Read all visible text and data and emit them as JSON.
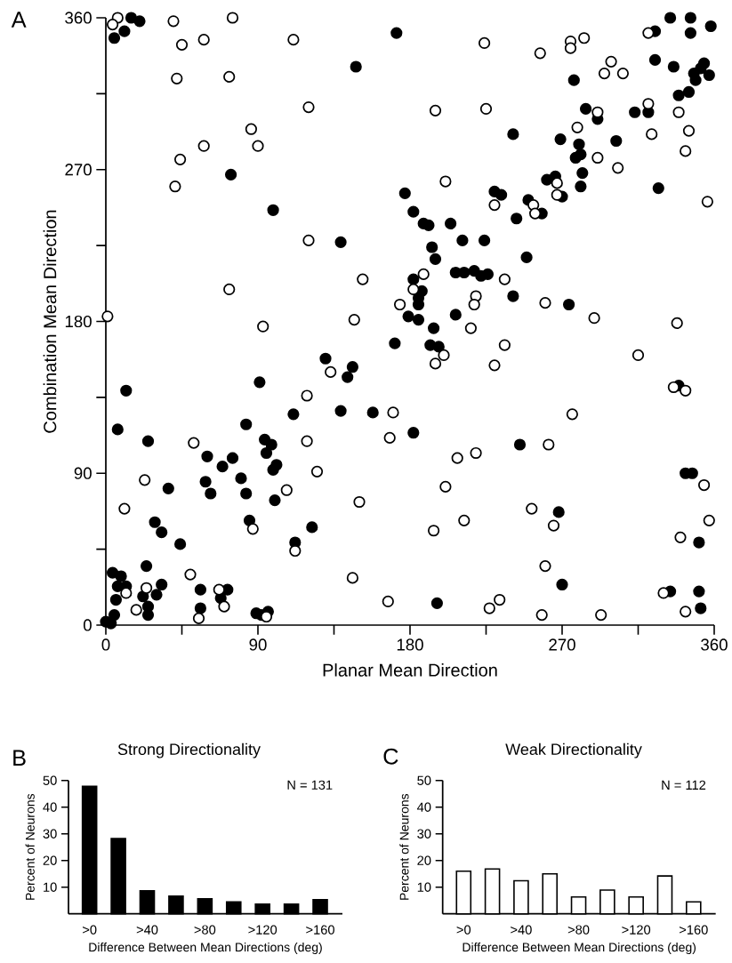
{
  "chart_data": [
    {
      "type": "scatter",
      "xlabel": "Planar Mean Direction",
      "ylabel": "Combination Mean Direction",
      "annotations": [
        "A"
      ],
      "marker": "circle",
      "xlim": [
        0,
        360
      ],
      "ylim": [
        0,
        360
      ],
      "xticks": [
        0,
        {
          "value": 45,
          "label": null
        },
        90,
        {
          "value": 135,
          "label": null
        },
        180,
        {
          "value": 225,
          "label": null
        },
        270,
        {
          "value": 315,
          "label": null
        },
        360
      ],
      "yticks": [
        0,
        {
          "value": 45,
          "label": null
        },
        90,
        {
          "value": 135,
          "label": null
        },
        180,
        {
          "value": 225,
          "label": null
        },
        270,
        {
          "value": 315,
          "label": null
        },
        360
      ],
      "series": [
        {
          "color": "#000000",
          "x": [
            15,
            20,
            11,
            5,
            172,
            148,
            74,
            99,
            139,
            334,
            346,
            358,
            325,
            346,
            277,
            325,
            336,
            354,
            352,
            357,
            348,
            349,
            345,
            339,
            284,
            291,
            313,
            321,
            241,
            269,
            280,
            302,
            278,
            281,
            282,
            281,
            327,
            177,
            182,
            188,
            191,
            204,
            211,
            224,
            193,
            195,
            249,
            230,
            234,
            261,
            266,
            270,
            250,
            258,
            243,
            207,
            212,
            218,
            222,
            226,
            182,
            187,
            185,
            185,
            179,
            185,
            241,
            207,
            274,
            171,
            130,
            146,
            143,
            91,
            12,
            139,
            158,
            111,
            83,
            7,
            25,
            94,
            98,
            95,
            60,
            75,
            69,
            101,
            99,
            80,
            59,
            62,
            83,
            100,
            37,
            29,
            33,
            44,
            85,
            122,
            112,
            24,
            4,
            9,
            12,
            7,
            6,
            33,
            30,
            22,
            25,
            25,
            5,
            0,
            3,
            56,
            56,
            72,
            68,
            89,
            92,
            96,
            194,
            192,
            197,
            182,
            245,
            339,
            343,
            347,
            268,
            351,
            270,
            196,
            334,
            351,
            352
          ],
          "values": [
            360,
            358,
            352,
            348,
            351,
            331,
            267,
            246,
            227,
            360,
            360,
            355,
            352,
            351,
            323,
            335,
            331,
            333,
            330,
            326,
            327,
            323,
            316,
            314,
            306,
            300,
            304,
            304,
            291,
            288,
            285,
            287,
            277,
            279,
            268,
            260,
            259,
            256,
            245,
            238,
            237,
            238,
            228,
            228,
            224,
            217,
            218,
            257,
            255,
            264,
            266,
            254,
            252,
            244,
            241,
            209,
            209,
            210,
            207,
            208,
            205,
            198,
            194,
            190,
            183,
            181,
            195,
            184,
            190,
            167,
            158,
            153,
            147,
            144,
            139,
            127,
            126,
            125,
            119,
            116,
            109,
            110,
            107,
            102,
            100,
            99,
            94,
            95,
            92,
            87,
            85,
            78,
            78,
            74,
            81,
            61,
            55,
            48,
            62,
            58,
            49,
            35,
            31,
            29,
            23,
            23,
            15,
            24,
            18,
            17,
            11,
            6,
            6,
            2,
            1,
            21,
            10,
            21,
            16,
            7,
            6,
            8,
            176,
            166,
            165,
            114,
            107,
            142,
            90,
            90,
            67,
            49,
            24,
            13,
            20,
            20,
            10
          ]
        },
        {
          "color": "#ffffff",
          "x": [
            7,
            4,
            40,
            75,
            45,
            58,
            111,
            42,
            73,
            120,
            86,
            58,
            90,
            44,
            41,
            120,
            152,
            73,
            174,
            1,
            147,
            224,
            257,
            275,
            275,
            283,
            321,
            299,
            295,
            306,
            195,
            225,
            321,
            339,
            345,
            323,
            343,
            279,
            291,
            291,
            303,
            201,
            356,
            230,
            267,
            267,
            253,
            254,
            188,
            182,
            236,
            219,
            218,
            260,
            289,
            93,
            52,
            23,
            11,
            87,
            112,
            119,
            119,
            133,
            125,
            107,
            150,
            170,
            168,
            146,
            167,
            50,
            24,
            12,
            18,
            67,
            70,
            55,
            95,
            216,
            338,
            200,
            195,
            236,
            230,
            315,
            336,
            343,
            276,
            262,
            208,
            219,
            201,
            354,
            252,
            265,
            212,
            194,
            357,
            340,
            260,
            330,
            233,
            227,
            258,
            293,
            343
          ],
          "values": [
            360,
            356,
            358,
            360,
            344,
            347,
            347,
            324,
            325,
            307,
            294,
            284,
            284,
            276,
            260,
            228,
            205,
            199,
            190,
            183,
            181,
            345,
            339,
            346,
            342,
            348,
            351,
            334,
            327,
            327,
            305,
            306,
            309,
            304,
            293,
            291,
            281,
            295,
            304,
            277,
            271,
            263,
            251,
            249,
            262,
            255,
            249,
            244,
            208,
            199,
            205,
            195,
            190,
            191,
            182,
            177,
            108,
            86,
            69,
            57,
            44,
            136,
            109,
            150,
            91,
            80,
            73,
            126,
            111,
            28,
            14,
            30,
            22,
            19,
            9,
            21,
            11,
            4,
            5,
            176,
            179,
            160,
            155,
            166,
            154,
            160,
            141,
            139,
            125,
            107,
            99,
            102,
            82,
            83,
            69,
            59,
            62,
            56,
            62,
            52,
            35,
            19,
            15,
            10,
            6,
            6,
            8
          ]
        }
      ]
    },
    {
      "type": "bar",
      "title": "Strong Directionality",
      "xlabel": "Difference Between Mean Directions (deg)",
      "ylabel": "Percent of Neurons",
      "annotations": [
        "B",
        "N = 131"
      ],
      "categories": [
        ">0",
        null,
        ">40",
        null,
        ">80",
        null,
        ">120",
        null,
        ">160"
      ],
      "values": [
        47.8,
        28.2,
        8.6,
        6.6,
        5.6,
        4.5,
        3.6,
        3.6,
        5.3
      ],
      "color": "#000000",
      "ylim": [
        0,
        50
      ],
      "yticks": [
        10,
        20,
        30,
        40,
        50
      ]
    },
    {
      "type": "bar",
      "title": "Weak Directionality",
      "xlabel": "Difference Between Mean Directions (deg)",
      "ylabel": "Percent of Neurons",
      "annotations": [
        "C",
        "N = 112"
      ],
      "categories": [
        ">0",
        null,
        ">40",
        null,
        ">80",
        null,
        ">120",
        null,
        ">160"
      ],
      "values": [
        16.0,
        16.8,
        12.4,
        15.0,
        6.3,
        8.9,
        6.3,
        14.2,
        4.5
      ],
      "color": "#ffffff",
      "ylim": [
        0,
        50
      ],
      "yticks": [
        10,
        20,
        30,
        40,
        50
      ]
    }
  ]
}
